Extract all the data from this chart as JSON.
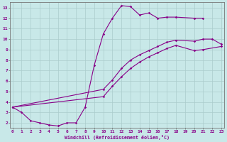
{
  "bg_color": "#c8e8e8",
  "line_color": "#880088",
  "grid_color": "#aacccc",
  "xlabel": "Windchill (Refroidissement éolien,°C)",
  "line1_x": [
    0,
    1,
    2,
    3,
    4,
    5,
    6,
    7,
    8,
    9,
    10,
    11,
    12,
    13,
    14,
    15,
    16,
    17,
    18,
    20,
    21
  ],
  "line1_y": [
    3.5,
    3.0,
    2.2,
    2.0,
    1.8,
    1.7,
    2.0,
    2.0,
    3.5,
    7.5,
    10.5,
    12.0,
    13.2,
    13.1,
    12.3,
    12.5,
    12.0,
    12.1,
    12.1,
    12.0,
    12.0
  ],
  "line2_x": [
    0,
    10,
    11,
    12,
    13,
    14,
    15,
    16,
    17,
    18,
    20,
    21,
    22,
    23
  ],
  "line2_y": [
    3.5,
    5.2,
    6.1,
    7.2,
    8.0,
    8.5,
    8.9,
    9.3,
    9.7,
    9.9,
    9.8,
    10.0,
    10.0,
    9.5
  ],
  "line3_x": [
    0,
    10,
    11,
    12,
    13,
    14,
    15,
    16,
    17,
    18,
    20,
    21,
    23
  ],
  "line3_y": [
    3.5,
    4.5,
    5.5,
    6.4,
    7.2,
    7.8,
    8.3,
    8.7,
    9.1,
    9.4,
    8.9,
    9.0,
    9.3
  ],
  "xlim": [
    0,
    23
  ],
  "ylim": [
    1.5,
    13.5
  ],
  "xticks": [
    0,
    1,
    2,
    3,
    4,
    5,
    6,
    7,
    8,
    9,
    10,
    11,
    12,
    13,
    14,
    15,
    16,
    17,
    18,
    19,
    20,
    21,
    22,
    23
  ],
  "yticks": [
    2,
    3,
    4,
    5,
    6,
    7,
    8,
    9,
    10,
    11,
    12,
    13
  ]
}
